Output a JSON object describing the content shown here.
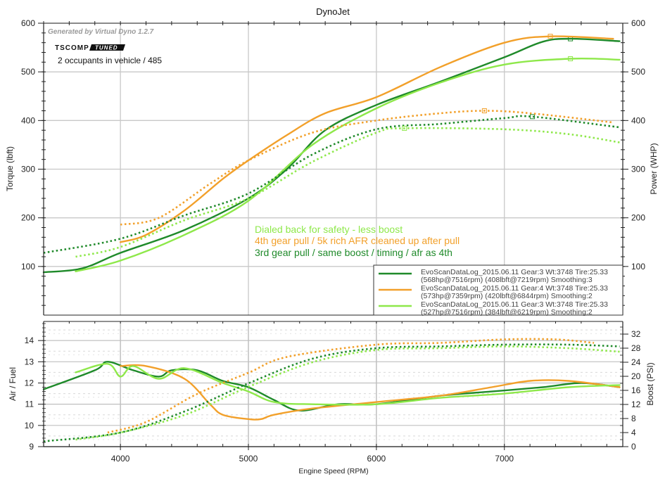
{
  "chart_data": [
    {
      "type": "line",
      "title": "DynoJet",
      "xlabel": "Engine Speed (RPM)",
      "ylabel": "Torque (lbft)",
      "ylabel_right": "Power (WHP)",
      "xlim": [
        3400,
        7925
      ],
      "ylim": [
        0,
        600
      ],
      "ylim_right": [
        0,
        600
      ],
      "x_ticks": [
        "4000",
        "5000",
        "6000",
        "7000"
      ],
      "y_ticks": [
        "100",
        "200",
        "300",
        "400",
        "500",
        "600"
      ],
      "y_ticks_right": [
        "100",
        "200",
        "300",
        "400",
        "500",
        "600"
      ],
      "grid": true,
      "legend_position": "bottom-right",
      "header_notes": {
        "generator": "Generated by Virtual Dyno 1.2.7",
        "logo_text_1": "TSCOMP",
        "logo_text_2": "TUNED",
        "occupants": "2 occupants in vehicle / 485"
      },
      "annotations": [
        {
          "text": "Dialed back for safety - less boost",
          "color": "#8ee84a"
        },
        {
          "text": "4th gear pull / 5k rich AFR cleaned up after pull",
          "color": "#f2a02a"
        },
        {
          "text": "3rd gear pull / same boost / timing / afr as 4th",
          "color": "#1f8a2a"
        }
      ],
      "legend": [
        {
          "line1": "EvoScanDataLog_2015.06.11 Gear:3 Wt:3748 Tire:25.33",
          "line2": "(568hp@7516rpm) (408lbft@7219rpm) Smoothing:3",
          "color": "#1f8a2a"
        },
        {
          "line1": "EvoScanDataLog_2015.06.11 Gear:4 Wt:3748 Tire:25.33",
          "line2": "(573hp@7359rpm) (420lbft@6844rpm) Smoothing:2",
          "color": "#f2a02a"
        },
        {
          "line1": "EvoScanDataLog_2015.06.11 Gear:3 Wt:3748 Tire:25.33",
          "line2": "(527hp@7516rpm) (384lbft@6219rpm) Smoothing:2",
          "color": "#8ee84a"
        }
      ],
      "series": [
        {
          "name": "Gear3 S3 Power (WHP)",
          "color": "#1f8a2a",
          "style": "solid",
          "x": [
            3400,
            3700,
            4000,
            4500,
            5000,
            5300,
            5600,
            6000,
            6500,
            7000,
            7300,
            7516,
            7900
          ],
          "y": [
            88,
            96,
            128,
            175,
            240,
            300,
            380,
            432,
            480,
            530,
            562,
            568,
            563
          ],
          "peak_marker_x": 7516
        },
        {
          "name": "Gear4 S2 Power (WHP)",
          "color": "#f2a02a",
          "style": "solid",
          "x": [
            4000,
            4200,
            4500,
            4800,
            5000,
            5300,
            5600,
            6000,
            6500,
            7000,
            7359,
            7850
          ],
          "y": [
            150,
            165,
            215,
            280,
            318,
            370,
            415,
            448,
            510,
            560,
            573,
            568
          ],
          "peak_marker_x": 7359
        },
        {
          "name": "Gear3 S2 Power (WHP)",
          "color": "#8ee84a",
          "style": "solid",
          "x": [
            3650,
            4000,
            4500,
            5000,
            5500,
            6000,
            6500,
            7000,
            7516,
            7900
          ],
          "y": [
            90,
            112,
            165,
            235,
            350,
            425,
            478,
            515,
            527,
            525
          ],
          "peak_marker_x": 7516
        },
        {
          "name": "Gear3 S3 Torque (lbft)",
          "color": "#1f8a2a",
          "style": "dotted",
          "x": [
            3400,
            4000,
            4500,
            5000,
            5500,
            6000,
            6500,
            7000,
            7219,
            7900
          ],
          "y": [
            128,
            157,
            205,
            250,
            330,
            382,
            393,
            405,
            408,
            386
          ],
          "peak_marker_x": 7219
        },
        {
          "name": "Gear4 S2 Torque (lbft)",
          "color": "#f2a02a",
          "style": "dotted",
          "x": [
            4000,
            4300,
            4700,
            5000,
            5500,
            6000,
            6500,
            6844,
            7200,
            7850
          ],
          "y": [
            186,
            200,
            270,
            318,
            375,
            400,
            415,
            420,
            415,
            396
          ],
          "peak_marker_x": 6844
        },
        {
          "name": "Gear3 S2 Torque (lbft)",
          "color": "#8ee84a",
          "style": "dotted",
          "x": [
            3650,
            4000,
            4500,
            5000,
            5500,
            6000,
            6219,
            7000,
            7500,
            7900
          ],
          "y": [
            120,
            140,
            195,
            240,
            315,
            375,
            384,
            382,
            372,
            355
          ],
          "peak_marker_x": 6219
        }
      ]
    },
    {
      "type": "line",
      "xlabel": "Engine Speed (RPM)",
      "ylabel": "Air / Fuel",
      "ylabel_right": "Boost (PSI)",
      "xlim": [
        3400,
        7925
      ],
      "ylim": [
        9,
        14.9
      ],
      "ylim_right": [
        0,
        35.6
      ],
      "x_ticks": [
        "4000",
        "5000",
        "6000",
        "7000"
      ],
      "y_ticks": [
        "9",
        "10",
        "11",
        "12",
        "13",
        "14"
      ],
      "y_ticks_right": [
        "0",
        "4",
        "8",
        "12",
        "16",
        "20",
        "24",
        "28",
        "32"
      ],
      "grid": true,
      "series": [
        {
          "name": "Gear3 S3 AFR",
          "color": "#1f8a2a",
          "style": "solid",
          "axis": "left",
          "x": [
            3400,
            3800,
            3900,
            4100,
            4300,
            4400,
            4600,
            4800,
            5000,
            5200,
            5400,
            5700,
            6000,
            6500,
            6900,
            7300,
            7600,
            7900
          ],
          "y": [
            11.7,
            12.6,
            13.0,
            12.6,
            12.3,
            12.6,
            12.6,
            12.1,
            11.8,
            11.2,
            10.7,
            11.0,
            11.0,
            11.4,
            11.6,
            11.8,
            12.0,
            11.8
          ]
        },
        {
          "name": "Gear4 S2 AFR",
          "color": "#f2a02a",
          "style": "solid",
          "axis": "left",
          "x": [
            4000,
            4200,
            4500,
            4700,
            4800,
            5000,
            5100,
            5200,
            5500,
            6000,
            6500,
            6900,
            7200,
            7500,
            7900
          ],
          "y": [
            12.8,
            12.8,
            12.2,
            11.0,
            10.5,
            10.3,
            10.3,
            10.5,
            10.8,
            11.1,
            11.4,
            11.8,
            12.1,
            12.1,
            11.8
          ]
        },
        {
          "name": "Gear3 S2 AFR",
          "color": "#8ee84a",
          "style": "solid",
          "axis": "left",
          "x": [
            3650,
            3900,
            4000,
            4100,
            4300,
            4500,
            4800,
            5000,
            5200,
            5500,
            6000,
            6500,
            7000,
            7500,
            7900
          ],
          "y": [
            12.5,
            12.9,
            12.3,
            12.8,
            12.2,
            12.7,
            12.0,
            11.6,
            11.1,
            11.0,
            11.0,
            11.3,
            11.5,
            11.8,
            11.9
          ]
        },
        {
          "name": "Gear3 S3 Boost",
          "color": "#1f8a2a",
          "style": "dotted",
          "axis": "right",
          "x": [
            3400,
            4000,
            4500,
            5000,
            5500,
            6000,
            6500,
            7000,
            7500,
            7900
          ],
          "y": [
            1.5,
            4,
            10,
            18,
            25,
            28,
            28.5,
            29,
            29,
            28.5
          ]
        },
        {
          "name": "Gear4 S2 Boost",
          "color": "#f2a02a",
          "style": "dotted",
          "axis": "right",
          "x": [
            3900,
            4200,
            4600,
            5000,
            5300,
            6000,
            6500,
            7000,
            7400,
            7700
          ],
          "y": [
            4,
            7,
            15,
            21,
            25.5,
            29,
            29.5,
            30.5,
            30.5,
            29.5
          ]
        },
        {
          "name": "Gear3 S2 Boost",
          "color": "#8ee84a",
          "style": "dotted",
          "axis": "right",
          "x": [
            3650,
            4000,
            4500,
            5000,
            5500,
            6000,
            6500,
            7000,
            7500,
            7900
          ],
          "y": [
            2,
            4,
            9,
            17,
            24,
            27.5,
            28,
            28.5,
            28,
            27
          ]
        }
      ]
    }
  ]
}
